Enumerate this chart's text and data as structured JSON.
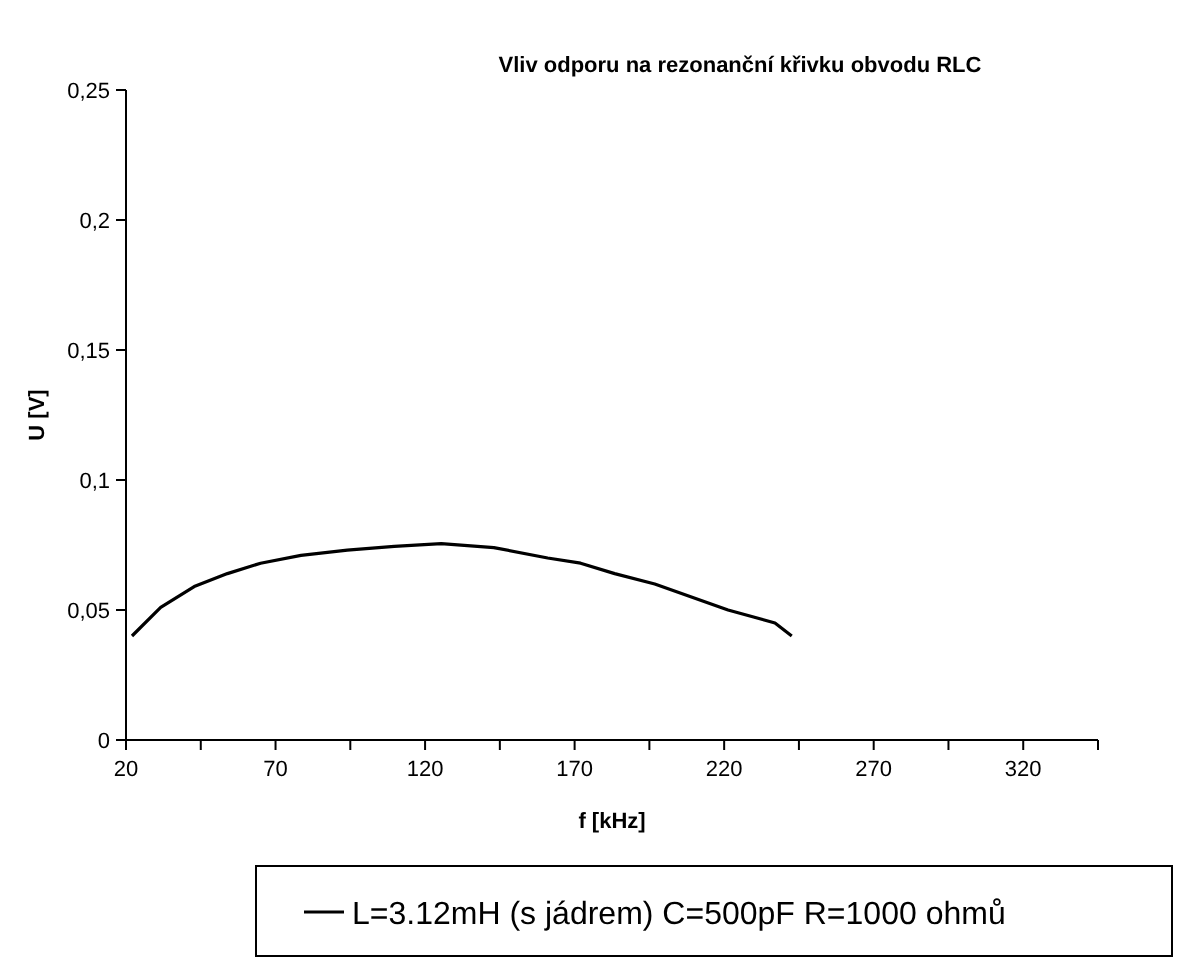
{
  "chart_data": {
    "type": "line",
    "title": "Vliv odporu na rezonanční křivku obvodu RLC",
    "xlabel": "f [kHz]",
    "ylabel": "U [V]",
    "x": [
      22,
      31.6,
      42.8,
      53.9,
      65,
      78.5,
      94,
      109.7,
      125.4,
      143,
      161,
      172,
      183.4,
      196.8,
      221.3,
      237,
      242.6
    ],
    "series": [
      {
        "name": "L=3.12mH (s jádrem) C=500pF R=1000 ohmů",
        "color": "#000000",
        "values": [
          0.04,
          0.051,
          0.059,
          0.064,
          0.068,
          0.071,
          0.073,
          0.0745,
          0.0755,
          0.074,
          0.07,
          0.068,
          0.064,
          0.06,
          0.05,
          0.045,
          0.04
        ]
      }
    ],
    "xlim": [
      20,
      345
    ],
    "xticks": [
      20,
      {
        "value": 45,
        "label": null
      },
      70,
      {
        "value": 95,
        "label": null
      },
      120,
      {
        "value": 145,
        "label": null
      },
      170,
      {
        "value": 195,
        "label": null
      },
      220,
      {
        "value": 245,
        "label": null
      },
      270,
      {
        "value": 295,
        "label": null
      },
      320,
      {
        "value": 345,
        "label": null
      }
    ],
    "ylim": [
      0,
      0.25
    ],
    "yticks": [
      {
        "value": 0,
        "label": "0"
      },
      {
        "value": 0.05,
        "label": "0,05"
      },
      {
        "value": 0.1,
        "label": "0,1"
      },
      {
        "value": 0.15,
        "label": "0,15"
      },
      {
        "value": 0.2,
        "label": "0,2"
      },
      {
        "value": 0.25,
        "label": "0,25"
      }
    ],
    "grid": false,
    "legend": "bottom",
    "marker": "none",
    "line_style": "solid"
  }
}
